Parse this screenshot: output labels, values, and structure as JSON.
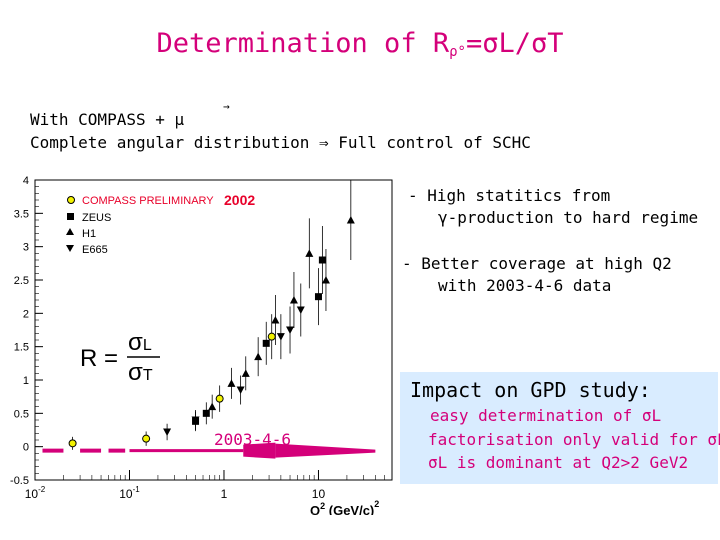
{
  "title": {
    "prefix": "Determination of R",
    "subscript": "ρ°",
    "suffix": "=σL/σT"
  },
  "intro": {
    "line1": "With COMPASS + μ",
    "line2": "Complete angular distribution  ⇒ Full control of SCHC"
  },
  "bullets": [
    {
      "line1": "- High statitics from",
      "line2": "γ-production to hard regime"
    },
    {
      "line1": "- Better coverage at high Q2",
      "line2": "with 2003-4-6 data"
    }
  ],
  "impact": {
    "heading": "Impact on GPD study:",
    "items": [
      "easy determination of σL",
      "factorisation only valid for σL",
      "σL is dominant at Q2>2 GeV2"
    ]
  },
  "colors": {
    "magenta": "#d4007a",
    "red": "#e8002a",
    "yellow_marker": "#f2f200",
    "impact_bg": "#d9ecff"
  },
  "chart_data": {
    "type": "scatter",
    "x_scale": "log",
    "xlim": [
      0.01,
      60
    ],
    "ylim": [
      -0.5,
      4
    ],
    "xlabel": "Q2 (GeV/c)2",
    "ylabel": "",
    "x_ticks": [
      "10-2",
      "10-1",
      "1",
      "10"
    ],
    "y_ticks": [
      "-0.5",
      "0",
      "0.5",
      "1",
      "1.5",
      "2",
      "2.5",
      "3",
      "3.5",
      "4"
    ],
    "formula": "R = σL / σT",
    "legend": {
      "header": "COMPASS PRELIMINARY",
      "header_year": "2002",
      "entries": [
        "ZEUS",
        "H1",
        "E665"
      ]
    },
    "projection_label": "2003-4-6",
    "series": [
      {
        "name": "COMPASS PRELIMINARY 2002",
        "marker": "circle",
        "color": "#f2f200",
        "points": [
          {
            "x": 0.025,
            "y": 0.05
          },
          {
            "x": 0.15,
            "y": 0.12
          },
          {
            "x": 0.9,
            "y": 0.72
          },
          {
            "x": 3.2,
            "y": 1.65
          }
        ]
      },
      {
        "name": "ZEUS",
        "marker": "square",
        "color": "#000000",
        "points": [
          {
            "x": 0.5,
            "y": 0.38
          },
          {
            "x": 0.65,
            "y": 0.5
          },
          {
            "x": 2.8,
            "y": 1.55
          },
          {
            "x": 10.0,
            "y": 2.25
          },
          {
            "x": 11.0,
            "y": 2.8
          }
        ]
      },
      {
        "name": "H1",
        "marker": "triangle-up",
        "color": "#000000",
        "points": [
          {
            "x": 0.75,
            "y": 0.6
          },
          {
            "x": 1.2,
            "y": 0.95
          },
          {
            "x": 1.7,
            "y": 1.1
          },
          {
            "x": 2.3,
            "y": 1.35
          },
          {
            "x": 3.5,
            "y": 1.9
          },
          {
            "x": 5.5,
            "y": 2.2
          },
          {
            "x": 8.0,
            "y": 2.9
          },
          {
            "x": 12.0,
            "y": 2.5
          },
          {
            "x": 22.0,
            "y": 3.4
          }
        ]
      },
      {
        "name": "E665",
        "marker": "triangle-down",
        "color": "#000000",
        "points": [
          {
            "x": 0.25,
            "y": 0.22
          },
          {
            "x": 0.5,
            "y": 0.4
          },
          {
            "x": 1.5,
            "y": 0.85
          },
          {
            "x": 4.0,
            "y": 1.65
          },
          {
            "x": 5.0,
            "y": 1.75
          },
          {
            "x": 6.5,
            "y": 2.05
          }
        ]
      }
    ]
  }
}
